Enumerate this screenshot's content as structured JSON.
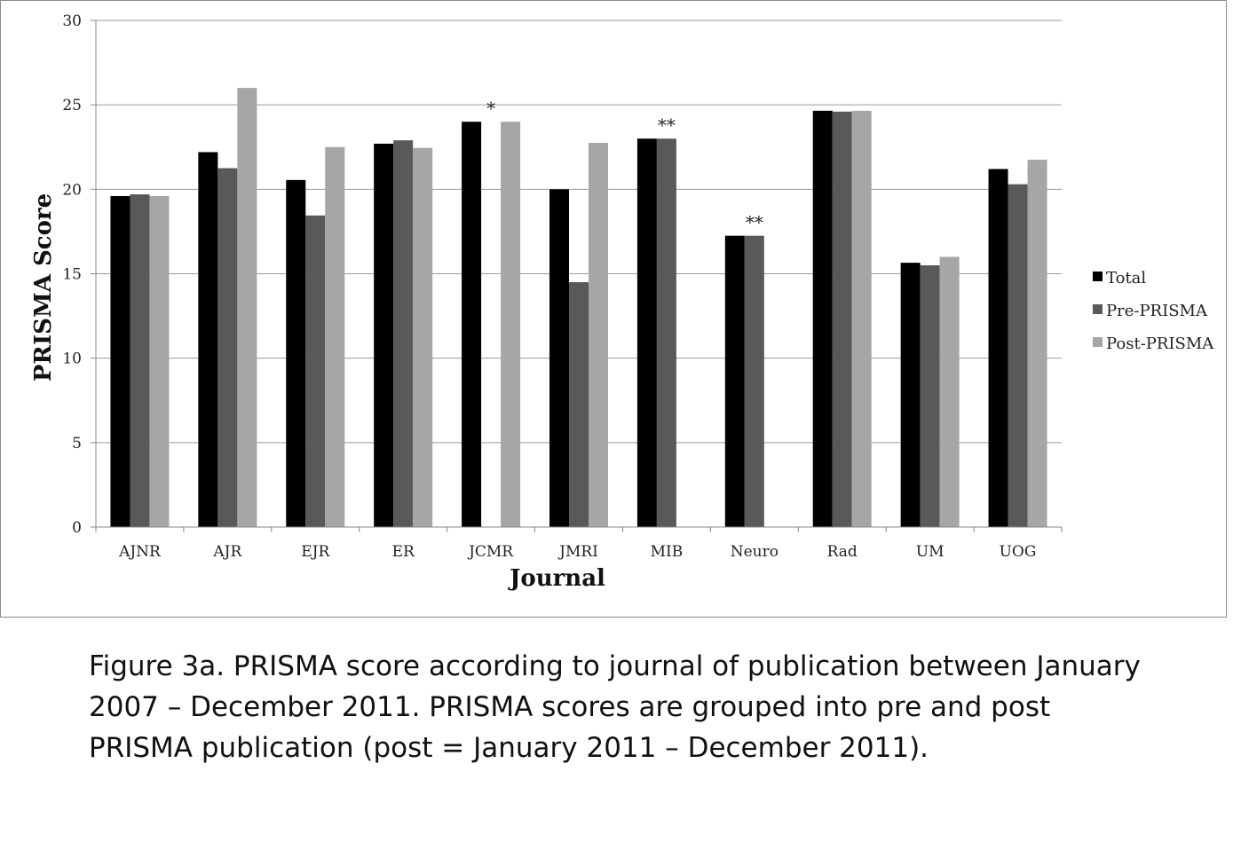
{
  "chart_data": {
    "type": "bar",
    "xlabel": "Journal",
    "ylabel": "PRISMA Score",
    "ylim": [
      0,
      30
    ],
    "yticks": [
      0,
      5,
      10,
      15,
      20,
      25,
      30
    ],
    "grid": true,
    "legend_position": "right",
    "categories": [
      "AJNR",
      "AJR",
      "EJR",
      "ER",
      "JCMR",
      "JMRI",
      "MIB",
      "Neuro",
      "Rad",
      "UM",
      "UOG"
    ],
    "series": [
      {
        "name": "Total",
        "color": "#000000",
        "values": [
          19.6,
          22.2,
          20.55,
          22.7,
          24.0,
          20.0,
          23.0,
          17.25,
          24.65,
          15.65,
          21.2
        ]
      },
      {
        "name": "Pre-PRISMA",
        "color": "#595959",
        "values": [
          19.7,
          21.25,
          18.45,
          22.9,
          null,
          14.5,
          23.0,
          17.25,
          24.6,
          15.5,
          20.3
        ]
      },
      {
        "name": "Post-PRISMA",
        "color": "#a6a6a6",
        "values": [
          19.6,
          26.0,
          22.5,
          22.45,
          24.0,
          22.75,
          null,
          null,
          24.65,
          16.0,
          21.75
        ]
      }
    ],
    "annotations": [
      {
        "category": "JCMR",
        "text": "*",
        "y": 24.0
      },
      {
        "category": "MIB",
        "text": "**",
        "y": 23.0
      },
      {
        "category": "Neuro",
        "text": "**",
        "y": 17.25
      }
    ]
  },
  "caption": {
    "lines": [
      "Figure 3a. PRISMA score according to journal of publication between January",
      "2007 – December 2011. PRISMA scores are grouped into pre and post",
      "PRISMA publication (post = January 2011 – December 2011)."
    ]
  }
}
